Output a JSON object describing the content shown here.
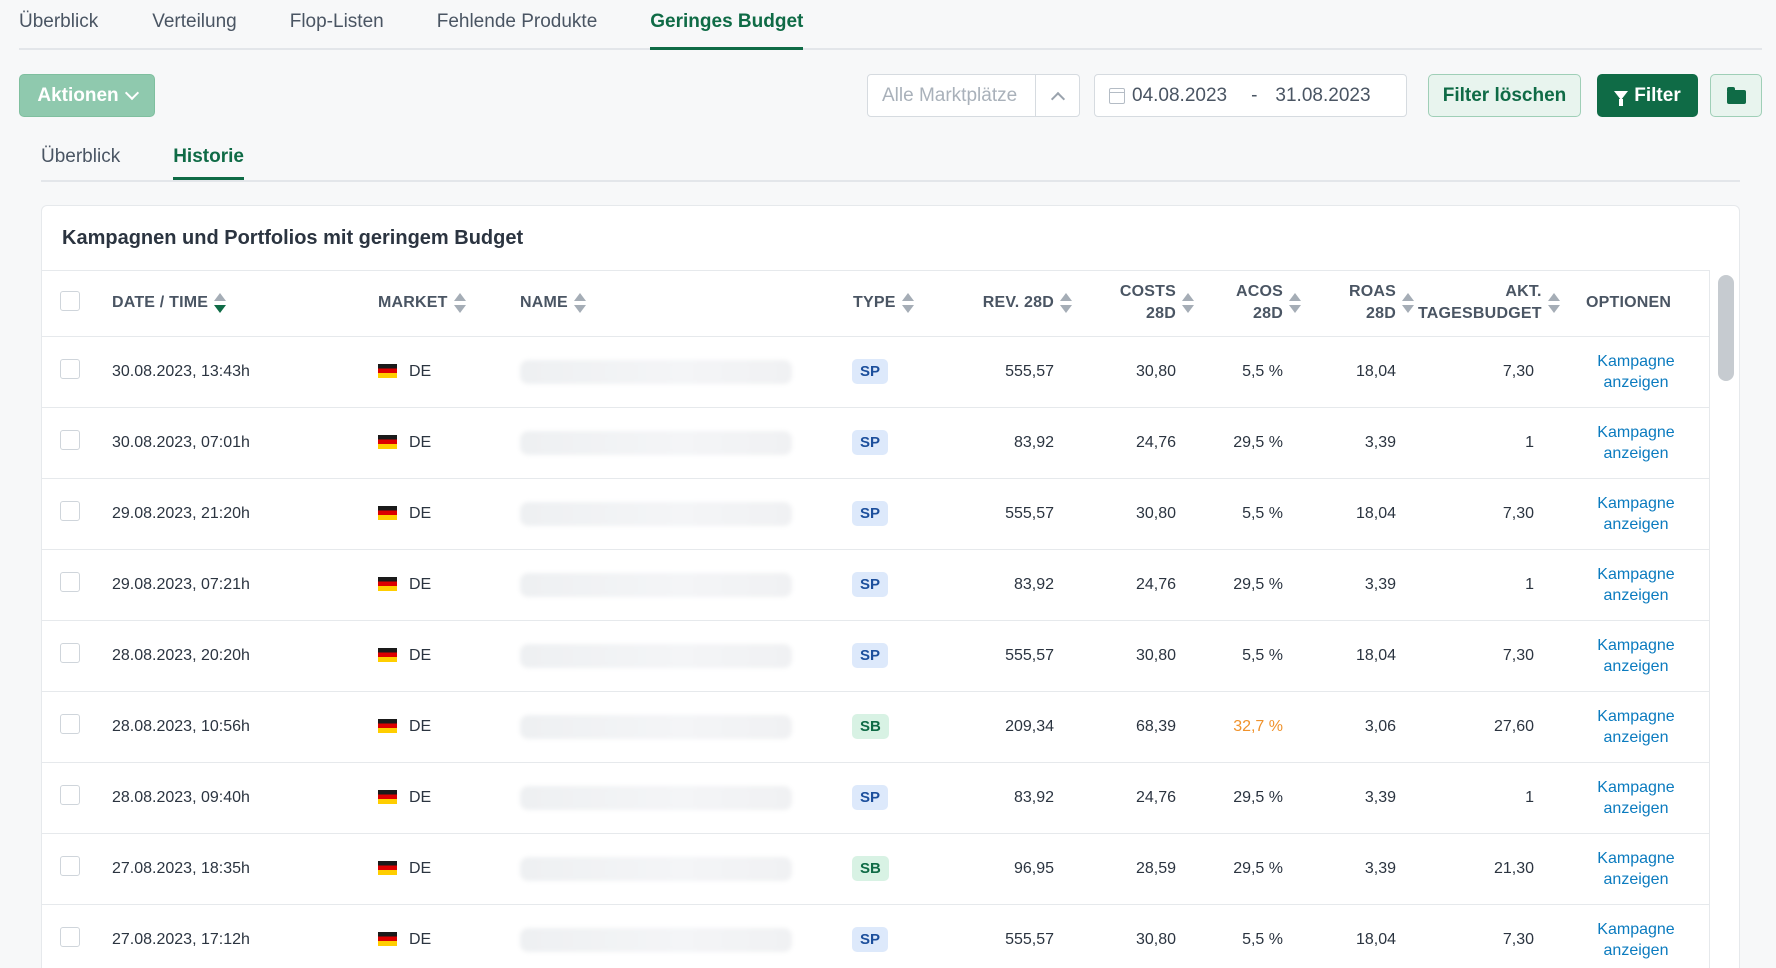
{
  "top_tabs": [
    {
      "label": "Überblick"
    },
    {
      "label": "Verteilung"
    },
    {
      "label": "Flop-Listen"
    },
    {
      "label": "Fehlende Produkte"
    },
    {
      "label": "Geringes Budget",
      "active": true
    }
  ],
  "toolbar": {
    "actions_label": "Aktionen",
    "market_placeholder": "Alle Marktplätze",
    "date_from": "04.08.2023",
    "date_separator": "-",
    "date_to": "31.08.2023",
    "clear_filter_label": "Filter löschen",
    "filter_label": "Filter",
    "folder_icon": "folder-icon"
  },
  "sub_tabs": [
    {
      "label": "Überblick"
    },
    {
      "label": "Historie",
      "active": true
    }
  ],
  "card": {
    "title": "Kampagnen und Portfolios mit geringem Budget"
  },
  "table": {
    "headers": {
      "date": "DATE / TIME",
      "market": "MARKET",
      "name": "NAME",
      "type": "TYPE",
      "rev": "REV. 28D",
      "costs_1": "COSTS",
      "costs_2": "28D",
      "acos_1": "ACOS",
      "acos_2": "28D",
      "roas_1": "ROAS",
      "roas_2": "28D",
      "budget_1": "AKT.",
      "budget_2": "TAGESBUDGET",
      "options": "OPTIONEN"
    },
    "link_line1": "Kampagne",
    "link_line2": "anzeigen",
    "rows": [
      {
        "date": "30.08.2023, 13:43h",
        "market": "DE",
        "type": "SP",
        "rev": "555,57",
        "costs": "30,80",
        "acos": "5,5 %",
        "roas": "18,04",
        "budget": "7,30"
      },
      {
        "date": "30.08.2023, 07:01h",
        "market": "DE",
        "type": "SP",
        "rev": "83,92",
        "costs": "24,76",
        "acos": "29,5 %",
        "roas": "3,39",
        "budget": "1"
      },
      {
        "date": "29.08.2023, 21:20h",
        "market": "DE",
        "type": "SP",
        "rev": "555,57",
        "costs": "30,80",
        "acos": "5,5 %",
        "roas": "18,04",
        "budget": "7,30"
      },
      {
        "date": "29.08.2023, 07:21h",
        "market": "DE",
        "type": "SP",
        "rev": "83,92",
        "costs": "24,76",
        "acos": "29,5 %",
        "roas": "3,39",
        "budget": "1"
      },
      {
        "date": "28.08.2023, 20:20h",
        "market": "DE",
        "type": "SP",
        "rev": "555,57",
        "costs": "30,80",
        "acos": "5,5 %",
        "roas": "18,04",
        "budget": "7,30"
      },
      {
        "date": "28.08.2023, 10:56h",
        "market": "DE",
        "type": "SB",
        "rev": "209,34",
        "costs": "68,39",
        "acos": "32,7 %",
        "acos_warn": true,
        "roas": "3,06",
        "budget": "27,60"
      },
      {
        "date": "28.08.2023, 09:40h",
        "market": "DE",
        "type": "SP",
        "rev": "83,92",
        "costs": "24,76",
        "acos": "29,5 %",
        "roas": "3,39",
        "budget": "1"
      },
      {
        "date": "27.08.2023, 18:35h",
        "market": "DE",
        "type": "SB",
        "rev": "96,95",
        "costs": "28,59",
        "acos": "29,5 %",
        "roas": "3,39",
        "budget": "21,30"
      },
      {
        "date": "27.08.2023, 17:12h",
        "market": "DE",
        "type": "SP",
        "rev": "555,57",
        "costs": "30,80",
        "acos": "5,5 %",
        "roas": "18,04",
        "budget": "7,30"
      }
    ]
  },
  "colors": {
    "brand": "#0f6b46",
    "link": "#0b7bbf",
    "warning": "#f0922b"
  }
}
